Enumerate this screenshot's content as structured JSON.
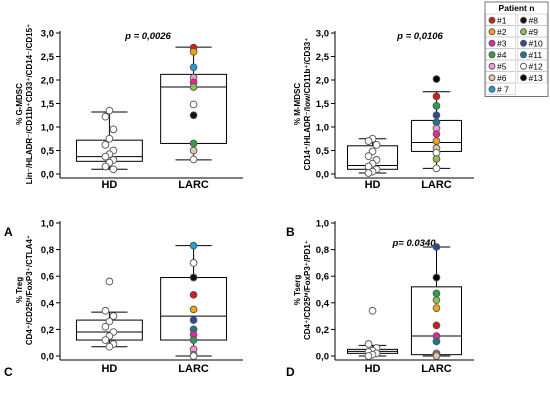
{
  "colors": {
    "p1": "#d7191c",
    "p2": "#f5a30f",
    "p3": "#e8279a",
    "p4": "#2e9e4f",
    "p5": "#f59ad0",
    "p6": "#ddc8a3",
    "p7": "#1f9fd6",
    "p8": "#111111",
    "p9": "#8bc34a",
    "p10": "#2b4c9b",
    "p11": "#1a7a8a",
    "p12": "#ffffff",
    "p13": "#000000"
  },
  "legend": {
    "title": "Patient  n",
    "items": [
      {
        "label": "#1",
        "color": "#d7191c"
      },
      {
        "label": "#8",
        "color": "#111111"
      },
      {
        "label": "#2",
        "color": "#f5a30f"
      },
      {
        "label": "#9",
        "color": "#8bc34a"
      },
      {
        "label": "#3",
        "color": "#e8279a"
      },
      {
        "label": "#10",
        "color": "#2b4c9b"
      },
      {
        "label": "#4",
        "color": "#2e9e4f"
      },
      {
        "label": "#11",
        "color": "#1a7a8a"
      },
      {
        "label": "#5",
        "color": "#f59ad0"
      },
      {
        "label": "#12",
        "color": "#ffffff"
      },
      {
        "label": "#6",
        "color": "#ddc8a3"
      },
      {
        "label": "#13",
        "color": "#000000"
      },
      {
        "label": "# 7",
        "color": "#1f9fd6"
      }
    ]
  },
  "chart_data": [
    {
      "panel": "A",
      "type": "box",
      "ylabel_line1": "% G-MDSC",
      "ylabel_line2": "Lin⁻/HLADR⁻/CD11b⁺CD33⁺/CD14⁻/CD15⁺",
      "annotation": "p = 0,0026",
      "ylim": [
        0,
        3.0
      ],
      "yticks": [
        "0,0",
        "0,5",
        "1,0",
        "1,5",
        "2,0",
        "2,5",
        "3,0"
      ],
      "categories": [
        "HD",
        "LARC"
      ],
      "groups": [
        {
          "name": "HD",
          "q1": 0.27,
          "median": 0.37,
          "q3": 0.72,
          "whisker_low": 0.1,
          "whisker_high": 1.32,
          "points": [
            {
              "v": 1.35,
              "c": "#ffffff"
            },
            {
              "v": 1.22,
              "c": "#ffffff"
            },
            {
              "v": 0.95,
              "c": "#ffffff"
            },
            {
              "v": 0.75,
              "c": "#ffffff"
            },
            {
              "v": 0.62,
              "c": "#ffffff"
            },
            {
              "v": 0.5,
              "c": "#ffffff"
            },
            {
              "v": 0.42,
              "c": "#ffffff"
            },
            {
              "v": 0.37,
              "c": "#ffffff"
            },
            {
              "v": 0.3,
              "c": "#ffffff"
            },
            {
              "v": 0.24,
              "c": "#ffffff"
            },
            {
              "v": 0.16,
              "c": "#ffffff"
            },
            {
              "v": 0.1,
              "c": "#ffffff"
            }
          ]
        },
        {
          "name": "LARC",
          "q1": 0.65,
          "median": 1.85,
          "q3": 2.12,
          "whisker_low": 0.3,
          "whisker_high": 2.7,
          "points": [
            {
              "v": 2.69,
              "c": "#d7191c"
            },
            {
              "v": 2.6,
              "c": "#f5a30f"
            },
            {
              "v": 2.27,
              "c": "#1f9fd6"
            },
            {
              "v": 2.05,
              "c": "#f59ad0"
            },
            {
              "v": 1.95,
              "c": "#e8279a"
            },
            {
              "v": 1.85,
              "c": "#8bc34a"
            },
            {
              "v": 1.48,
              "c": "#ffffff"
            },
            {
              "v": 1.25,
              "c": "#111111"
            },
            {
              "v": 0.65,
              "c": "#2e9e4f"
            },
            {
              "v": 0.5,
              "c": "#ddc8a3"
            },
            {
              "v": 0.31,
              "c": "#ffffff"
            }
          ]
        }
      ]
    },
    {
      "panel": "B",
      "type": "box",
      "ylabel_line1": "% M-MDSC",
      "ylabel_line2": "CD14⁺/HLADR⁻/low/CD11b⁺/CD33⁺",
      "annotation": "p = 0,0106",
      "ylim": [
        0,
        3.0
      ],
      "yticks": [
        "0,0",
        "0,5",
        "1,0",
        "1,5",
        "2,0",
        "2,5",
        "3,0"
      ],
      "categories": [
        "HD",
        "LARC"
      ],
      "groups": [
        {
          "name": "HD",
          "q1": 0.1,
          "median": 0.18,
          "q3": 0.6,
          "whisker_low": 0.02,
          "whisker_high": 0.75,
          "points": [
            {
              "v": 0.75,
              "c": "#ffffff"
            },
            {
              "v": 0.7,
              "c": "#ffffff"
            },
            {
              "v": 0.62,
              "c": "#ffffff"
            },
            {
              "v": 0.48,
              "c": "#ffffff"
            },
            {
              "v": 0.38,
              "c": "#ffffff"
            },
            {
              "v": 0.3,
              "c": "#ffffff"
            },
            {
              "v": 0.22,
              "c": "#ffffff"
            },
            {
              "v": 0.16,
              "c": "#ffffff"
            },
            {
              "v": 0.1,
              "c": "#ffffff"
            },
            {
              "v": 0.05,
              "c": "#ffffff"
            },
            {
              "v": 0.02,
              "c": "#ffffff"
            }
          ]
        },
        {
          "name": "LARC",
          "q1": 0.48,
          "median": 0.67,
          "q3": 1.14,
          "whisker_low": 0.12,
          "whisker_high": 1.75,
          "points": [
            {
              "v": 2.02,
              "c": "#000000"
            },
            {
              "v": 1.65,
              "c": "#d7191c"
            },
            {
              "v": 1.45,
              "c": "#2e9e4f"
            },
            {
              "v": 1.25,
              "c": "#2b4c9b"
            },
            {
              "v": 1.1,
              "c": "#1a7a8a"
            },
            {
              "v": 0.97,
              "c": "#f59ad0"
            },
            {
              "v": 0.85,
              "c": "#e8279a"
            },
            {
              "v": 0.7,
              "c": "#f5a30f"
            },
            {
              "v": 0.55,
              "c": "#ddc8a3"
            },
            {
              "v": 0.45,
              "c": "#ffffff"
            },
            {
              "v": 0.32,
              "c": "#8bc34a"
            },
            {
              "v": 0.12,
              "c": "#ffffff"
            }
          ]
        }
      ]
    },
    {
      "panel": "C",
      "type": "box",
      "ylabel_line1": "% Treg",
      "ylabel_line2": "CD4⁺/CD25ʰⁱ/FoxP3⁺/CTLA4⁺",
      "annotation": "",
      "ylim": [
        0,
        1.0
      ],
      "yticks": [
        "0,0",
        "0,2",
        "0,4",
        "0,6",
        "0,8",
        "1,0"
      ],
      "categories": [
        "HD",
        "LARC"
      ],
      "groups": [
        {
          "name": "HD",
          "q1": 0.12,
          "median": 0.18,
          "q3": 0.27,
          "whisker_low": 0.07,
          "whisker_high": 0.33,
          "points": [
            {
              "v": 0.56,
              "c": "#ffffff"
            },
            {
              "v": 0.34,
              "c": "#ffffff"
            },
            {
              "v": 0.3,
              "c": "#ffffff"
            },
            {
              "v": 0.26,
              "c": "#ffffff"
            },
            {
              "v": 0.22,
              "c": "#ffffff"
            },
            {
              "v": 0.18,
              "c": "#ffffff"
            },
            {
              "v": 0.15,
              "c": "#ffffff"
            },
            {
              "v": 0.12,
              "c": "#ffffff"
            },
            {
              "v": 0.09,
              "c": "#ffffff"
            },
            {
              "v": 0.07,
              "c": "#ffffff"
            }
          ]
        },
        {
          "name": "LARC",
          "q1": 0.12,
          "median": 0.3,
          "q3": 0.59,
          "whisker_low": 0.0,
          "whisker_high": 0.83,
          "points": [
            {
              "v": 0.83,
              "c": "#1f9fd6"
            },
            {
              "v": 0.7,
              "c": "#ffffff"
            },
            {
              "v": 0.59,
              "c": "#111111"
            },
            {
              "v": 0.46,
              "c": "#d7191c"
            },
            {
              "v": 0.35,
              "c": "#f5a30f"
            },
            {
              "v": 0.27,
              "c": "#2b4c9b"
            },
            {
              "v": 0.2,
              "c": "#1a7a8a"
            },
            {
              "v": 0.16,
              "c": "#e8279a"
            },
            {
              "v": 0.12,
              "c": "#2e9e4f"
            },
            {
              "v": 0.05,
              "c": "#f59ad0"
            },
            {
              "v": 0.01,
              "c": "#ddc8a3"
            },
            {
              "v": 0.0,
              "c": "#ffffff"
            }
          ]
        }
      ]
    },
    {
      "panel": "D",
      "type": "box",
      "ylabel_line1": "% Tserg",
      "ylabel_line2": "CD4⁺/CD25ʰⁱ/FoxP3⁺/PD1⁺",
      "annotation": "p= 0.0340",
      "ylim": [
        0,
        1.0
      ],
      "yticks": [
        "0,0",
        "0,2",
        "0,4",
        "0,6",
        "0,8",
        "1,0"
      ],
      "categories": [
        "HD",
        "LARC"
      ],
      "groups": [
        {
          "name": "HD",
          "q1": 0.02,
          "median": 0.035,
          "q3": 0.05,
          "whisker_low": 0.0,
          "whisker_high": 0.08,
          "points": [
            {
              "v": 0.34,
              "c": "#ffffff"
            },
            {
              "v": 0.09,
              "c": "#ffffff"
            },
            {
              "v": 0.06,
              "c": "#ffffff"
            },
            {
              "v": 0.04,
              "c": "#ffffff"
            },
            {
              "v": 0.03,
              "c": "#ffffff"
            },
            {
              "v": 0.02,
              "c": "#ffffff"
            },
            {
              "v": 0.01,
              "c": "#ffffff"
            },
            {
              "v": 0.0,
              "c": "#ffffff"
            }
          ]
        },
        {
          "name": "LARC",
          "q1": 0.01,
          "median": 0.15,
          "q3": 0.52,
          "whisker_low": 0.0,
          "whisker_high": 0.82,
          "points": [
            {
              "v": 0.82,
              "c": "#2b4c9b"
            },
            {
              "v": 0.59,
              "c": "#000000"
            },
            {
              "v": 0.47,
              "c": "#2e9e4f"
            },
            {
              "v": 0.42,
              "c": "#8bc34a"
            },
            {
              "v": 0.36,
              "c": "#f5a30f"
            },
            {
              "v": 0.23,
              "c": "#d7191c"
            },
            {
              "v": 0.15,
              "c": "#e8279a"
            },
            {
              "v": 0.11,
              "c": "#1a7a8a"
            },
            {
              "v": 0.02,
              "c": "#f59ad0"
            },
            {
              "v": 0.01,
              "c": "#ffffff"
            },
            {
              "v": 0.0,
              "c": "#ddc8a3"
            }
          ]
        }
      ]
    }
  ]
}
